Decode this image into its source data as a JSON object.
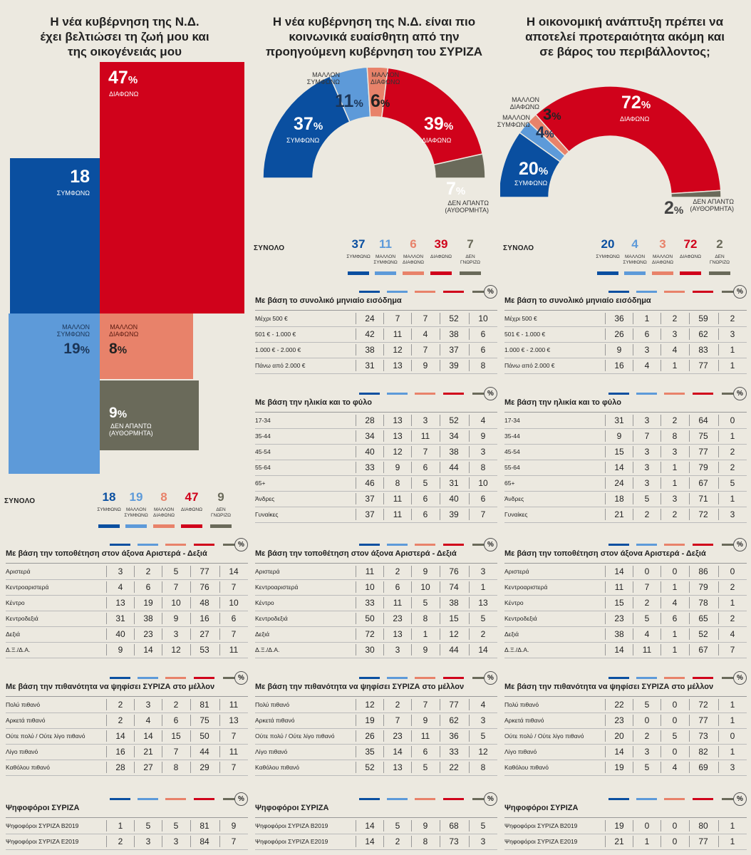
{
  "colors": {
    "agree": "#0a4fa0",
    "mostly_agree": "#5d9ad9",
    "mostly_disagree": "#e8826a",
    "disagree": "#d0021b",
    "no_answer": "#6a6a5a"
  },
  "panels": [
    {
      "title": [
        "Η νέα κυβέρνηση της Ν.Δ.",
        "έχει βελτιώσει τη ζωή μου και",
        "της οικογένειάς μου"
      ],
      "chart_data": {
        "type": "mosaic",
        "values": {
          "agree": 18,
          "mostly_agree": 19,
          "mostly_disagree": 8,
          "disagree": 47,
          "no_answer": 9
        }
      },
      "labels": {
        "disagree": "ΔΙΑΦΩΝΩ",
        "agree": "ΣΥΜΦΩΝΩ",
        "mostly_agree": "ΜΑΛΛΟΝ\nΣΥΜΦΩΝΩ",
        "mostly_disagree": "ΜΑΛΛΟΝ\nΔΙΑΦΩΝΩ",
        "no_answer": "ΔΕΝ ΑΠΑΝΤΩ\n(ΑΥΘΟΡΜΗΤΑ)"
      },
      "total": {
        "label": "ΣΥΝΟΛΟ",
        "values": [
          "18",
          "19",
          "8",
          "47",
          "9"
        ],
        "cols": [
          "ΣΥΜΦΩΝΩ",
          "ΜΑΛΛΟΝ\nΣΥΜΦΩΝΩ",
          "ΜΑΛΛΟΝ\nΔΙΑΦΩΝΩ",
          "ΔΙΑΦΩΝΩ",
          "ΔΕΝ\nΓΝΩΡΙΖΩ"
        ]
      },
      "sections": [
        {
          "title": "Με βάση την τοποθέτηση στον άξονα Αριστερά - Δεξιά",
          "rows": [
            [
              "Αριστερά",
              "3",
              "2",
              "5",
              "77",
              "14"
            ],
            [
              "Κεντροαριστερά",
              "4",
              "6",
              "7",
              "76",
              "7"
            ],
            [
              "Κέντρο",
              "13",
              "19",
              "10",
              "48",
              "10"
            ],
            [
              "Κεντροδεξιά",
              "31",
              "38",
              "9",
              "16",
              "6"
            ],
            [
              "Δεξιά",
              "40",
              "23",
              "3",
              "27",
              "7"
            ],
            [
              "Δ.Ξ./Δ.Α.",
              "9",
              "14",
              "12",
              "53",
              "11"
            ]
          ]
        },
        {
          "title": "Με βάση την πιθανότητα να ψηφίσει ΣΥΡΙΖΑ στο μέλλον",
          "rows": [
            [
              "Πολύ πιθανό",
              "2",
              "3",
              "2",
              "81",
              "11"
            ],
            [
              "Αρκετά πιθανό",
              "2",
              "4",
              "6",
              "75",
              "13"
            ],
            [
              "Ούτε πολύ / Ούτε λίγο πιθανό",
              "14",
              "14",
              "15",
              "50",
              "7"
            ],
            [
              "Λίγο πιθανό",
              "16",
              "21",
              "7",
              "44",
              "11"
            ],
            [
              "Καθόλου πιθανό",
              "28",
              "27",
              "8",
              "29",
              "7"
            ]
          ]
        },
        {
          "title": "Ψηφοφόροι ΣΥΡΙΖΑ",
          "rows": [
            [
              "Ψηφοφόροι ΣΥΡΙΖΑ Β2019",
              "1",
              "5",
              "5",
              "81",
              "9"
            ],
            [
              "Ψηφοφόροι ΣΥΡΙΖΑ Ε2019",
              "2",
              "3",
              "3",
              "84",
              "7"
            ]
          ]
        }
      ]
    },
    {
      "title": [
        "Η νέα κυβέρνηση της Ν.Δ. είναι πιο",
        "κοινωνικά ευαίσθητη από την",
        "προηγούμενη κυβέρνηση του ΣΥΡΙΖΑ"
      ],
      "chart_data": {
        "type": "donut-half",
        "values": {
          "agree": 37,
          "mostly_agree": 11,
          "mostly_disagree": 6,
          "disagree": 39,
          "no_answer": 7
        }
      },
      "labels": {
        "disagree": "ΔΙΑΦΩΝΩ",
        "agree": "ΣΥΜΦΩΝΩ",
        "mostly_agree": "ΜΑΛΛΟΝ\nΣΥΜΦΩΝΩ",
        "mostly_disagree": "ΜΑΛΛΟΝ\nΔΙΑΦΩΝΩ",
        "no_answer": "ΔΕΝ ΑΠΑΝΤΩ\n(ΑΥΘΟΡΜΗΤΑ)"
      },
      "total": {
        "label": "ΣΥΝΟΛΟ",
        "values": [
          "37",
          "11",
          "6",
          "39",
          "7"
        ],
        "cols": [
          "ΣΥΜΦΩΝΩ",
          "ΜΑΛΛΟΝ\nΣΥΜΦΩΝΩ",
          "ΜΑΛΛΟΝ\nΔΙΑΦΩΝΩ",
          "ΔΙΑΦΩΝΩ",
          "ΔΕΝ\nΓΝΩΡΙΖΩ"
        ]
      },
      "sections": [
        {
          "title": "Με βάση το συνολικό μηνιαίο εισόδημα",
          "rows": [
            [
              "Μέχρι 500 €",
              "24",
              "7",
              "7",
              "52",
              "10"
            ],
            [
              "501 € - 1.000 €",
              "42",
              "11",
              "4",
              "38",
              "6"
            ],
            [
              "1.000 € - 2.000 €",
              "38",
              "12",
              "7",
              "37",
              "6"
            ],
            [
              "Πάνω από 2.000 €",
              "31",
              "13",
              "9",
              "39",
              "8"
            ]
          ]
        },
        {
          "title": "Με βάση την ηλικία και το φύλο",
          "rows": [
            [
              "17-34",
              "28",
              "13",
              "3",
              "52",
              "4"
            ],
            [
              "35-44",
              "34",
              "13",
              "11",
              "34",
              "9"
            ],
            [
              "45-54",
              "40",
              "12",
              "7",
              "38",
              "3"
            ],
            [
              "55-64",
              "33",
              "9",
              "6",
              "44",
              "8"
            ],
            [
              "65+",
              "46",
              "8",
              "5",
              "31",
              "10"
            ],
            [
              "Άνδρες",
              "37",
              "11",
              "6",
              "40",
              "6"
            ],
            [
              "Γυναίκες",
              "37",
              "11",
              "6",
              "39",
              "7"
            ]
          ]
        },
        {
          "title": "Με βάση την τοποθέτηση στον άξονα Αριστερά - Δεξιά",
          "rows": [
            [
              "Αριστερά",
              "11",
              "2",
              "9",
              "76",
              "3"
            ],
            [
              "Κεντροαριστερά",
              "10",
              "6",
              "10",
              "74",
              "1"
            ],
            [
              "Κέντρο",
              "33",
              "11",
              "5",
              "38",
              "13"
            ],
            [
              "Κεντροδεξιά",
              "50",
              "23",
              "8",
              "15",
              "5"
            ],
            [
              "Δεξιά",
              "72",
              "13",
              "1",
              "12",
              "2"
            ],
            [
              "Δ.Ξ./Δ.Α.",
              "30",
              "3",
              "9",
              "44",
              "14"
            ]
          ]
        },
        {
          "title": "Με βάση την πιθανότητα να ψηφίσει ΣΥΡΙΖΑ στο μέλλον",
          "rows": [
            [
              "Πολύ πιθανό",
              "12",
              "2",
              "7",
              "77",
              "4"
            ],
            [
              "Αρκετά πιθανό",
              "19",
              "7",
              "9",
              "62",
              "3"
            ],
            [
              "Ούτε πολύ / Ούτε λίγο πιθανό",
              "26",
              "23",
              "11",
              "36",
              "5"
            ],
            [
              "Λίγο πιθανό",
              "35",
              "14",
              "6",
              "33",
              "12"
            ],
            [
              "Καθόλου πιθανό",
              "52",
              "13",
              "5",
              "22",
              "8"
            ]
          ]
        },
        {
          "title": "Ψηφοφόροι ΣΥΡΙΖΑ",
          "rows": [
            [
              "Ψηφοφόροι ΣΥΡΙΖΑ Β2019",
              "14",
              "5",
              "9",
              "68",
              "5"
            ],
            [
              "Ψηφοφόροι ΣΥΡΙΖΑ Ε2019",
              "14",
              "2",
              "8",
              "73",
              "3"
            ]
          ]
        }
      ]
    },
    {
      "title": [
        "Η οικονομική ανάπτυξη πρέπει να",
        "αποτελεί προτεραιότητα ακόμη και",
        "σε βάρος του περιβάλλοντος;"
      ],
      "chart_data": {
        "type": "donut-half",
        "values": {
          "agree": 20,
          "mostly_agree": 4,
          "mostly_disagree": 3,
          "disagree": 72,
          "no_answer": 2
        }
      },
      "labels": {
        "disagree": "ΔΙΑΦΩΝΩ",
        "agree": "ΣΥΜΦΩΝΩ",
        "mostly_agree": "ΜΑΛΛΟΝ\nΣΥΜΦΩΝΩ",
        "mostly_disagree": "ΜΑΛΛΟΝ\nΔΙΑΦΩΝΩ",
        "no_answer": "ΔΕΝ ΑΠΑΝΤΩ\n(ΑΥΘΟΡΜΗΤΑ)"
      },
      "total": {
        "label": "ΣΥΝΟΛΟ",
        "values": [
          "20",
          "4",
          "3",
          "72",
          "2"
        ],
        "cols": [
          "ΣΥΜΦΩΝΩ",
          "ΜΑΛΛΟΝ\nΣΥΜΦΩΝΩ",
          "ΜΑΛΛΟΝ\nΔΙΑΦΩΝΩ",
          "ΔΙΑΦΩΝΩ",
          "ΔΕΝ\nΓΝΩΡΙΖΩ"
        ]
      },
      "sections": [
        {
          "title": "Με βάση το συνολικό μηνιαίο εισόδημα",
          "rows": [
            [
              "Μέχρι 500 €",
              "36",
              "1",
              "2",
              "59",
              "2"
            ],
            [
              "501 € - 1.000 €",
              "26",
              "6",
              "3",
              "62",
              "3"
            ],
            [
              "1.000 € - 2.000 €",
              "9",
              "3",
              "4",
              "83",
              "1"
            ],
            [
              "Πάνω από 2.000 €",
              "16",
              "4",
              "1",
              "77",
              "1"
            ]
          ]
        },
        {
          "title": "Με βάση την ηλικία και το φύλο",
          "rows": [
            [
              "17-34",
              "31",
              "3",
              "2",
              "64",
              "0"
            ],
            [
              "35-44",
              "9",
              "7",
              "8",
              "75",
              "1"
            ],
            [
              "45-54",
              "15",
              "3",
              "3",
              "77",
              "2"
            ],
            [
              "55-64",
              "14",
              "3",
              "1",
              "79",
              "2"
            ],
            [
              "65+",
              "24",
              "3",
              "1",
              "67",
              "5"
            ],
            [
              "Άνδρες",
              "18",
              "5",
              "3",
              "71",
              "1"
            ],
            [
              "Γυναίκες",
              "21",
              "2",
              "2",
              "72",
              "3"
            ]
          ]
        },
        {
          "title": "Με βάση την τοποθέτηση στον άξονα Αριστερά - Δεξιά",
          "rows": [
            [
              "Αριστερά",
              "14",
              "0",
              "0",
              "86",
              "0"
            ],
            [
              "Κεντροαριστερά",
              "11",
              "7",
              "1",
              "79",
              "2"
            ],
            [
              "Κέντρο",
              "15",
              "2",
              "4",
              "78",
              "1"
            ],
            [
              "Κεντροδεξιά",
              "23",
              "5",
              "6",
              "65",
              "2"
            ],
            [
              "Δεξιά",
              "38",
              "4",
              "1",
              "52",
              "4"
            ],
            [
              "Δ.Ξ./Δ.Α.",
              "14",
              "11",
              "1",
              "67",
              "7"
            ]
          ]
        },
        {
          "title": "Με βάση την πιθανότητα να ψηφίσει ΣΥΡΙΖΑ στο μέλλον",
          "rows": [
            [
              "Πολύ πιθανό",
              "22",
              "5",
              "0",
              "72",
              "1"
            ],
            [
              "Αρκετά πιθανό",
              "23",
              "0",
              "0",
              "77",
              "1"
            ],
            [
              "Ούτε πολύ / Ούτε λίγο πιθανό",
              "20",
              "2",
              "5",
              "73",
              "0"
            ],
            [
              "Λίγο πιθανό",
              "14",
              "3",
              "0",
              "82",
              "1"
            ],
            [
              "Καθόλου πιθανό",
              "19",
              "5",
              "4",
              "69",
              "3"
            ]
          ]
        },
        {
          "title": "Ψηφοφόροι ΣΥΡΙΖΑ",
          "rows": [
            [
              "Ψηφοφόροι ΣΥΡΙΖΑ Β2019",
              "19",
              "0",
              "0",
              "80",
              "1"
            ],
            [
              "Ψηφοφόροι ΣΥΡΙΖΑ Ε2019",
              "21",
              "1",
              "0",
              "77",
              "1"
            ]
          ]
        }
      ]
    }
  ],
  "pct_symbol": "%"
}
